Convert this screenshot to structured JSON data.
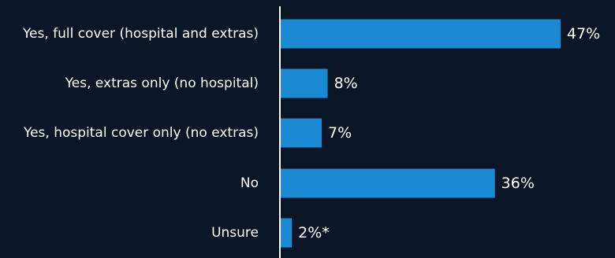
{
  "colors": {
    "background": "#0b1526",
    "bar": "#1b8ad3",
    "axis": "#ffffff",
    "text": "#ffffff"
  },
  "chart_data": {
    "type": "bar",
    "orientation": "horizontal",
    "categories": [
      "Yes, full cover (hospital and extras)",
      "Yes, extras only (no hospital)",
      "Yes, hospital cover only (no extras)",
      "No",
      "Unsure"
    ],
    "values": [
      47,
      8,
      7,
      36,
      2
    ],
    "value_labels": [
      "47%",
      "8%",
      "7%",
      "36%",
      "2%*"
    ],
    "title": "",
    "xlabel": "",
    "ylabel": "",
    "xlim": [
      0,
      50
    ],
    "grid": false,
    "legend": "none"
  }
}
